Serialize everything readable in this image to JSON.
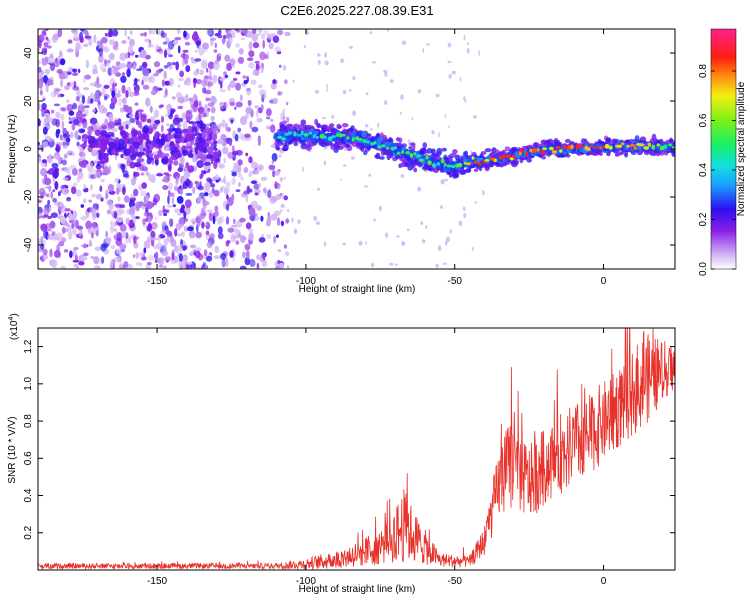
{
  "figure": {
    "title": "C2E6.2025.227.08.39.E31"
  },
  "chart_data": [
    {
      "type": "heatmap",
      "name": "spectrogram",
      "xlabel": "Height of straight line (km)",
      "ylabel": "Frequency (Hz)",
      "xlim": [
        -190,
        24
      ],
      "ylim": [
        -50,
        50
      ],
      "xticks": [
        -150,
        -100,
        -50,
        0
      ],
      "yticks": [
        -40,
        -20,
        0,
        20,
        40
      ],
      "colorbar": {
        "label": "Normalized spectral amplitude",
        "range": [
          0,
          0.97
        ],
        "ticks": [
          0,
          0.2,
          0.4,
          0.6,
          0.8
        ],
        "colormap": "rainbow (violet → blue → cyan → green → yellow → red → magenta)"
      },
      "signal_track": [
        {
          "x": -110,
          "f": 5,
          "amp": 0.45
        },
        {
          "x": -100,
          "f": 6,
          "amp": 0.5
        },
        {
          "x": -90,
          "f": 5,
          "amp": 0.55
        },
        {
          "x": -80,
          "f": 4,
          "amp": 0.55
        },
        {
          "x": -75,
          "f": 2,
          "amp": 0.55
        },
        {
          "x": -70,
          "f": -1,
          "amp": 0.55
        },
        {
          "x": -60,
          "f": -4,
          "amp": 0.6
        },
        {
          "x": -50,
          "f": -8,
          "amp": 0.5
        },
        {
          "x": -45,
          "f": -5,
          "amp": 0.9
        },
        {
          "x": -40,
          "f": -5,
          "amp": 0.9
        },
        {
          "x": -30,
          "f": -3,
          "amp": 0.9
        },
        {
          "x": -20,
          "f": 0,
          "amp": 0.9
        },
        {
          "x": -10,
          "f": 0,
          "amp": 0.9
        },
        {
          "x": 0,
          "f": 1,
          "amp": 0.9
        },
        {
          "x": 10,
          "f": 1,
          "amp": 0.9
        },
        {
          "x": 20,
          "f": 1,
          "amp": 0.6
        }
      ],
      "noise_region": {
        "x_range": [
          -190,
          -110
        ],
        "f_range": [
          -50,
          50
        ],
        "amp": 0.15
      }
    },
    {
      "type": "line",
      "name": "snr",
      "xlabel": "Height of straight line (km)",
      "ylabel": "SNR (10 * V/V)",
      "yscale_label": "(x10",
      "yscale_exp": "4",
      "yscale_close": ")",
      "xlim": [
        -190,
        24
      ],
      "ylim": [
        0,
        1.3
      ],
      "xticks": [
        -150,
        -100,
        -50,
        0
      ],
      "yticks": [
        0.2,
        0.4,
        0.6,
        0.8,
        1.0,
        1.2
      ],
      "color": "#e8312a",
      "envelope": [
        {
          "x": -190,
          "base": 0.02,
          "spread": 0.015
        },
        {
          "x": -110,
          "base": 0.02,
          "spread": 0.015
        },
        {
          "x": -100,
          "base": 0.03,
          "spread": 0.03
        },
        {
          "x": -90,
          "base": 0.05,
          "spread": 0.05
        },
        {
          "x": -80,
          "base": 0.09,
          "spread": 0.08
        },
        {
          "x": -72,
          "base": 0.14,
          "spread": 0.12
        },
        {
          "x": -67,
          "base": 0.22,
          "spread": 0.2
        },
        {
          "x": -62,
          "base": 0.14,
          "spread": 0.12
        },
        {
          "x": -55,
          "base": 0.05,
          "spread": 0.04
        },
        {
          "x": -45,
          "base": 0.04,
          "spread": 0.03
        },
        {
          "x": -40,
          "base": 0.15,
          "spread": 0.08
        },
        {
          "x": -35,
          "base": 0.45,
          "spread": 0.2
        },
        {
          "x": -31,
          "base": 0.55,
          "spread": 0.25
        },
        {
          "x": -25,
          "base": 0.45,
          "spread": 0.2
        },
        {
          "x": -15,
          "base": 0.6,
          "spread": 0.22
        },
        {
          "x": -5,
          "base": 0.7,
          "spread": 0.22
        },
        {
          "x": 5,
          "base": 0.85,
          "spread": 0.22
        },
        {
          "x": 14,
          "base": 1.0,
          "spread": 0.25
        },
        {
          "x": 24,
          "base": 1.08,
          "spread": 0.12
        }
      ],
      "peaks": [
        {
          "x": -31,
          "y": 1.09
        },
        {
          "x": 13.5,
          "y": 1.28
        },
        {
          "x": -66,
          "y": 0.52
        }
      ]
    }
  ]
}
